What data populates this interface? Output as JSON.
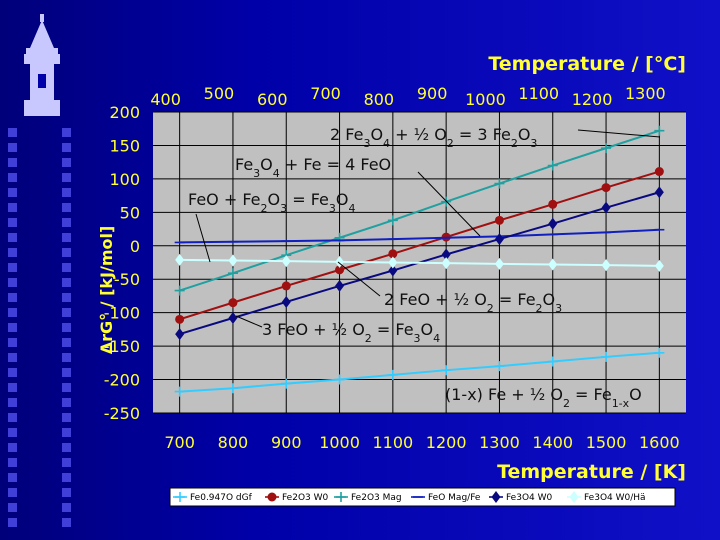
{
  "chart_data": {
    "type": "line",
    "xlabel_bottom": "Temperature / [K]",
    "xlabel_top": "Temperature / [°C]",
    "ylabel": "ΔrG° / [kJ/mol]",
    "xlim": [
      650,
      1650
    ],
    "ylim": [
      -250,
      200
    ],
    "x_ticks": [
      700,
      800,
      900,
      1000,
      1100,
      1200,
      1300,
      1400,
      1500,
      1600
    ],
    "y_ticks": [
      200,
      150,
      100,
      50,
      0,
      -50,
      -100,
      -150,
      -200,
      -250
    ],
    "top_ticks": [
      400,
      500,
      600,
      700,
      800,
      900,
      1000,
      1100,
      1200,
      1300
    ],
    "grid": true,
    "legend_placement": "bottom",
    "x": [
      700,
      800,
      900,
      1000,
      1100,
      1200,
      1300,
      1400,
      1500,
      1600
    ],
    "series": [
      {
        "name": "Fe0.947O dGf",
        "color": "#33ccff",
        "marker": "plus",
        "values": [
          -218,
          -213,
          -206,
          -200,
          -193,
          -186,
          -180,
          -173,
          -166,
          -160
        ]
      },
      {
        "name": "Fe2O3 W0",
        "color": "#a01010",
        "marker": "circle",
        "values": [
          -110,
          -85,
          -60,
          -36,
          -12,
          13,
          38,
          62,
          87,
          111
        ]
      },
      {
        "name": "Fe2O3 Mag",
        "color": "#20a0a0",
        "marker": "plus",
        "values": [
          -67,
          -41,
          -14,
          12,
          38,
          66,
          93,
          120,
          146,
          172
        ]
      },
      {
        "name": "FeO Mag/Fe",
        "color": "#1020c0",
        "marker": "dash",
        "values": [
          5,
          6,
          7,
          8,
          10,
          12,
          14,
          17,
          20,
          24
        ]
      },
      {
        "name": "Fe3O4 W0",
        "color": "#0a0a80",
        "marker": "diamond",
        "values": [
          -132,
          -108,
          -84,
          -60,
          -37,
          -13,
          10,
          33,
          57,
          80
        ]
      },
      {
        "name": "Fe3O4 W0/Hä",
        "color": "#ccffff",
        "marker": "diamond",
        "values": [
          -21,
          -22,
          -23,
          -24,
          -25,
          -26,
          -27,
          -28,
          -29,
          -30
        ]
      }
    ],
    "annotations": [
      {
        "pre": "2 Fe",
        "s1": "3",
        "mid1": "O",
        "s2": "4",
        "mid2": " + ½ O",
        "s3": "2",
        "mid3": " = 3 Fe",
        "s4": "2",
        "mid4": "O",
        "s5": "3"
      },
      {
        "pre": "Fe",
        "s1": "3",
        "mid1": "O",
        "s2": "4",
        "mid2": " + Fe = 4 FeO",
        "s3": "",
        "mid3": "",
        "s4": "",
        "mid4": "",
        "s5": ""
      },
      {
        "pre": "FeO + Fe",
        "s1": "2",
        "mid1": "O",
        "s2": "3",
        "mid2": " = Fe",
        "s3": "3",
        "mid3": "O",
        "s4": "4",
        "mid4": "",
        "s5": ""
      },
      {
        "pre": "2 FeO + ½ O",
        "s1": "2",
        "mid1": " = Fe",
        "s2": "2",
        "mid2": "O",
        "s3": "3",
        "mid3": "",
        "s4": "",
        "mid4": "",
        "s5": ""
      },
      {
        "pre": "3 FeO + ½ O",
        "s1": "2",
        "mid1": " = Fe",
        "s2": "3",
        "mid2": "O",
        "s3": "4",
        "mid3": "",
        "s4": "",
        "mid4": "",
        "s5": ""
      },
      {
        "pre": "(1-x) Fe + ½ O",
        "s1": "2",
        "mid1": " = Fe",
        "s2": "1-x",
        "mid2": "O",
        "s3": "",
        "mid3": "",
        "s4": "",
        "mid4": "",
        "s5": ""
      }
    ]
  }
}
